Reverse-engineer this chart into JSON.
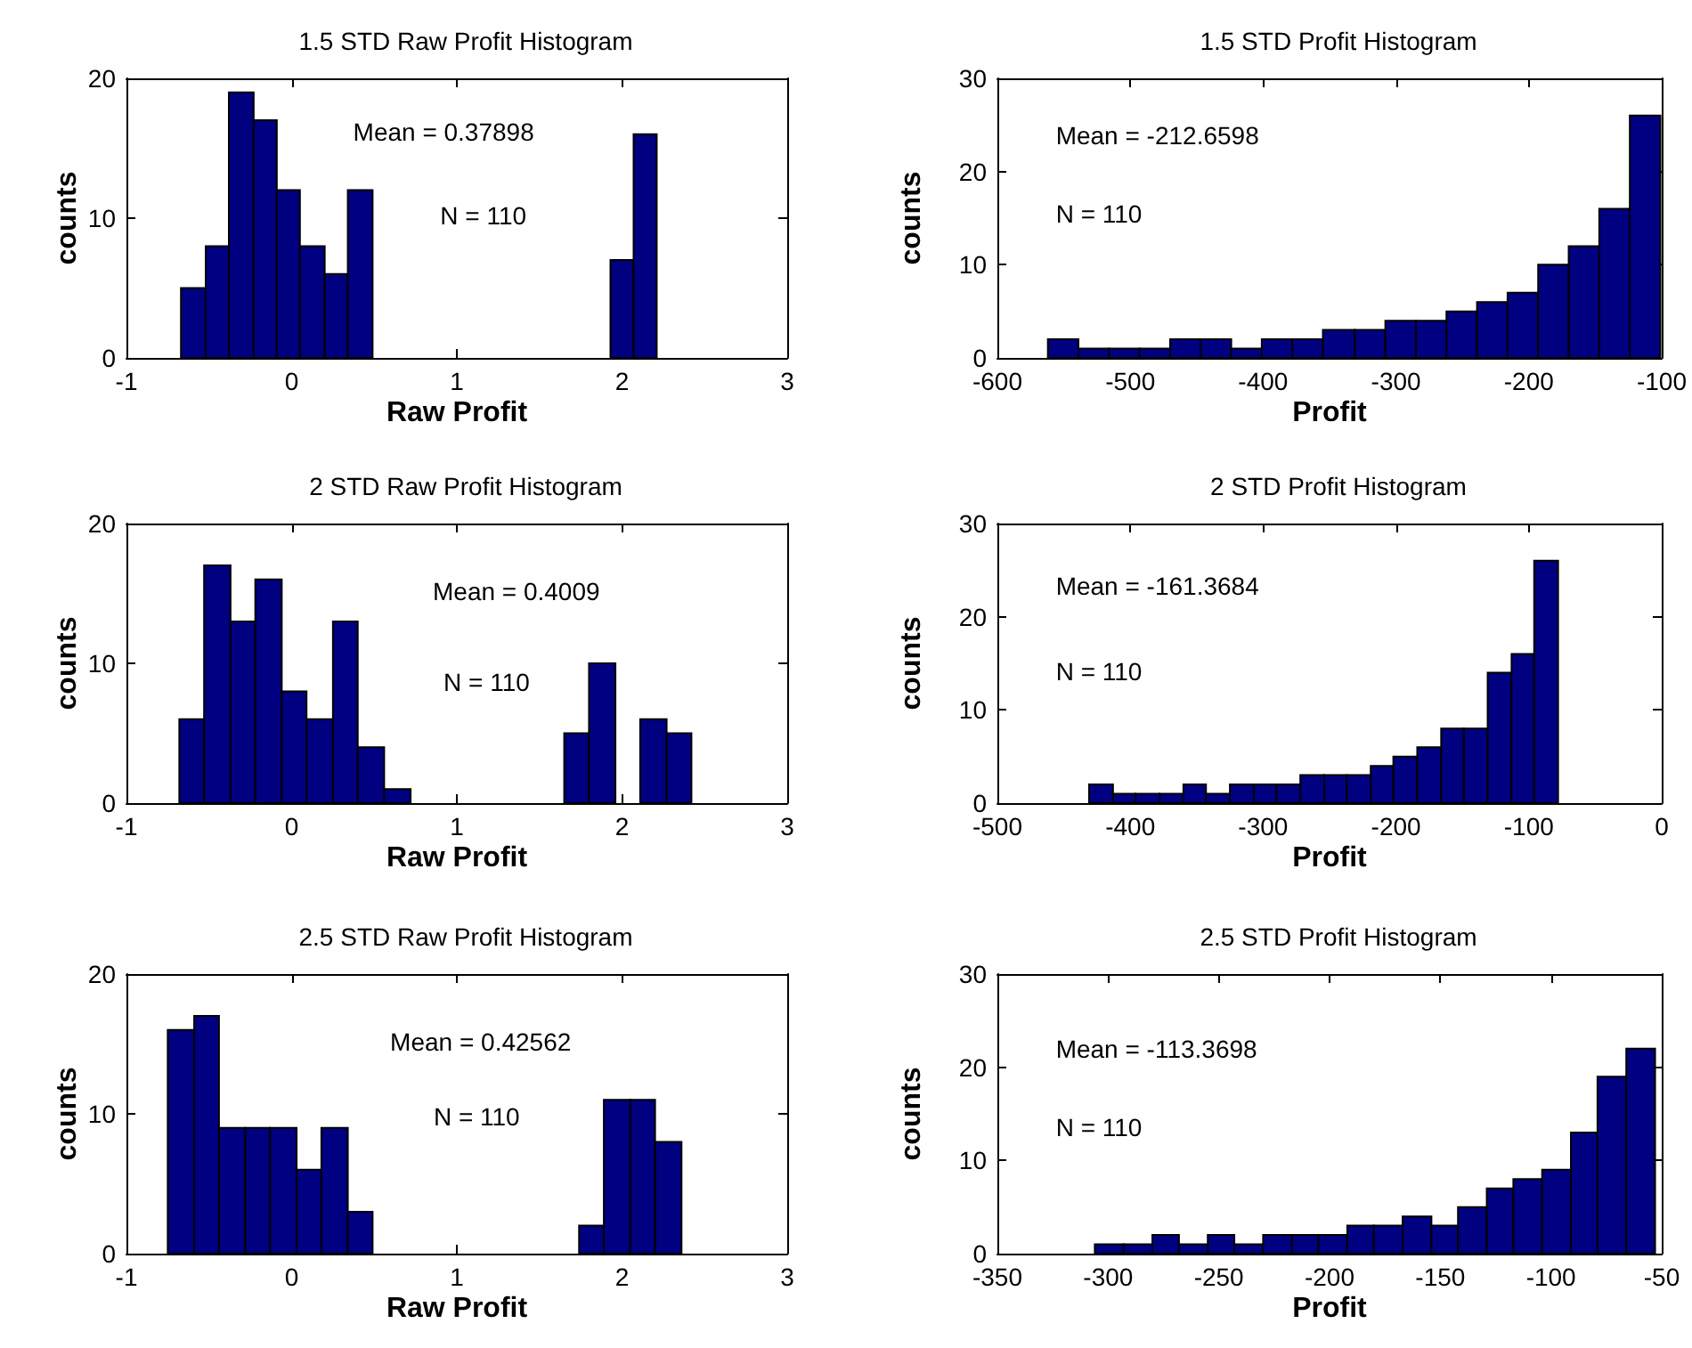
{
  "chart_data": [
    {
      "type": "histogram",
      "title": "1.5 STD Raw Profit Histogram",
      "xlabel": "Raw Profit",
      "ylabel": "counts",
      "bins": [
        -0.67,
        -0.52,
        -0.38,
        -0.23,
        -0.09,
        0.05,
        0.2,
        0.34,
        0.49,
        1.93,
        2.07,
        2.21
      ],
      "values": [
        5,
        8,
        19,
        17,
        12,
        8,
        6,
        12,
        0,
        7,
        16
      ],
      "color": "#000080",
      "xlim": [
        -1,
        3
      ],
      "xticks": [
        -1,
        0,
        1,
        2,
        3
      ],
      "ylim": [
        0,
        20
      ],
      "yticks": [
        0,
        10,
        20
      ],
      "annotations": [
        "Mean = 0.37898",
        "N = 110"
      ]
    },
    {
      "type": "histogram",
      "title": "1.5 STD Profit Histogram",
      "xlabel": "Profit",
      "ylabel": "counts",
      "bins": [
        -562,
        -539,
        -516,
        -493,
        -470,
        -447,
        -424,
        -401,
        -378,
        -355,
        -331,
        -308,
        -285,
        -262,
        -239,
        -216,
        -193,
        -170,
        -147,
        -124,
        -101
      ],
      "values": [
        2,
        1,
        1,
        1,
        2,
        2,
        1,
        2,
        2,
        3,
        3,
        4,
        4,
        5,
        6,
        7,
        10,
        12,
        16,
        26
      ],
      "color": "#000080",
      "xlim": [
        -600,
        -100
      ],
      "xticks": [
        -600,
        -500,
        -400,
        -300,
        -200,
        -100
      ],
      "ylim": [
        0,
        30
      ],
      "yticks": [
        0,
        10,
        20,
        30
      ],
      "annotations": [
        "Mean = -212.6598",
        "N = 110"
      ]
    },
    {
      "type": "histogram",
      "title": "2 STD Raw Profit Histogram",
      "xlabel": "Raw Profit",
      "ylabel": "counts",
      "bins": [
        -0.68,
        -0.53,
        -0.37,
        -0.22,
        -0.06,
        0.09,
        0.25,
        0.4,
        0.56,
        0.72,
        1.65,
        1.8,
        1.96,
        2.11,
        2.27,
        2.42
      ],
      "values": [
        6,
        17,
        13,
        16,
        8,
        6,
        13,
        4,
        1,
        0,
        5,
        10,
        0,
        6,
        5
      ],
      "color": "#000080",
      "xlim": [
        -1,
        3
      ],
      "xticks": [
        -1,
        0,
        1,
        2,
        3
      ],
      "ylim": [
        0,
        20
      ],
      "yticks": [
        0,
        10,
        20
      ],
      "annotations": [
        "Mean = 0.4009",
        "N = 110"
      ]
    },
    {
      "type": "histogram",
      "title": "2 STD Profit Histogram",
      "xlabel": "Profit",
      "ylabel": "counts",
      "bins": [
        -431,
        -413,
        -396,
        -378,
        -360,
        -343,
        -325,
        -307,
        -290,
        -272,
        -254,
        -237,
        -219,
        -202,
        -184,
        -166,
        -149,
        -131,
        -113,
        -96,
        -78
      ],
      "values": [
        2,
        1,
        1,
        1,
        2,
        1,
        2,
        2,
        2,
        3,
        3,
        3,
        4,
        5,
        6,
        8,
        8,
        14,
        16,
        26
      ],
      "color": "#000080",
      "xlim": [
        -500,
        0
      ],
      "xticks": [
        -500,
        -400,
        -300,
        -200,
        -100,
        0
      ],
      "ylim": [
        0,
        30
      ],
      "yticks": [
        0,
        10,
        20,
        30
      ],
      "annotations": [
        "Mean = -161.3684",
        "N = 110"
      ]
    },
    {
      "type": "histogram",
      "title": "2.5 STD Raw Profit Histogram",
      "xlabel": "Raw Profit",
      "ylabel": "counts",
      "bins": [
        -0.75,
        -0.59,
        -0.44,
        -0.28,
        -0.13,
        0.03,
        0.18,
        0.34,
        0.49,
        1.74,
        1.89,
        2.05,
        2.2,
        2.36
      ],
      "values": [
        16,
        17,
        9,
        9,
        9,
        6,
        9,
        3,
        0,
        2,
        11,
        11,
        8
      ],
      "color": "#000080",
      "xlim": [
        -1,
        3
      ],
      "xticks": [
        -1,
        0,
        1,
        2,
        3
      ],
      "ylim": [
        0,
        20
      ],
      "yticks": [
        0,
        10,
        20
      ],
      "annotations": [
        "Mean = 0.42562",
        "N = 110"
      ]
    },
    {
      "type": "histogram",
      "title": "2.5 STD Profit Histogram",
      "xlabel": "Profit",
      "ylabel": "counts",
      "bins": [
        -306,
        -293,
        -280,
        -268,
        -255,
        -243,
        -230,
        -217,
        -205,
        -192,
        -180,
        -167,
        -154,
        -142,
        -129,
        -117,
        -104,
        -91,
        -79,
        -66,
        -53
      ],
      "values": [
        1,
        1,
        2,
        1,
        2,
        1,
        2,
        2,
        2,
        3,
        3,
        4,
        3,
        5,
        7,
        8,
        9,
        13,
        19,
        22
      ],
      "color": "#000080",
      "xlim": [
        -350,
        -50
      ],
      "xticks": [
        -350,
        -300,
        -250,
        -200,
        -150,
        -100,
        -50
      ],
      "ylim": [
        0,
        30
      ],
      "yticks": [
        0,
        10,
        20,
        30
      ],
      "annotations": [
        "Mean = -113.3698",
        "N = 110"
      ]
    }
  ]
}
